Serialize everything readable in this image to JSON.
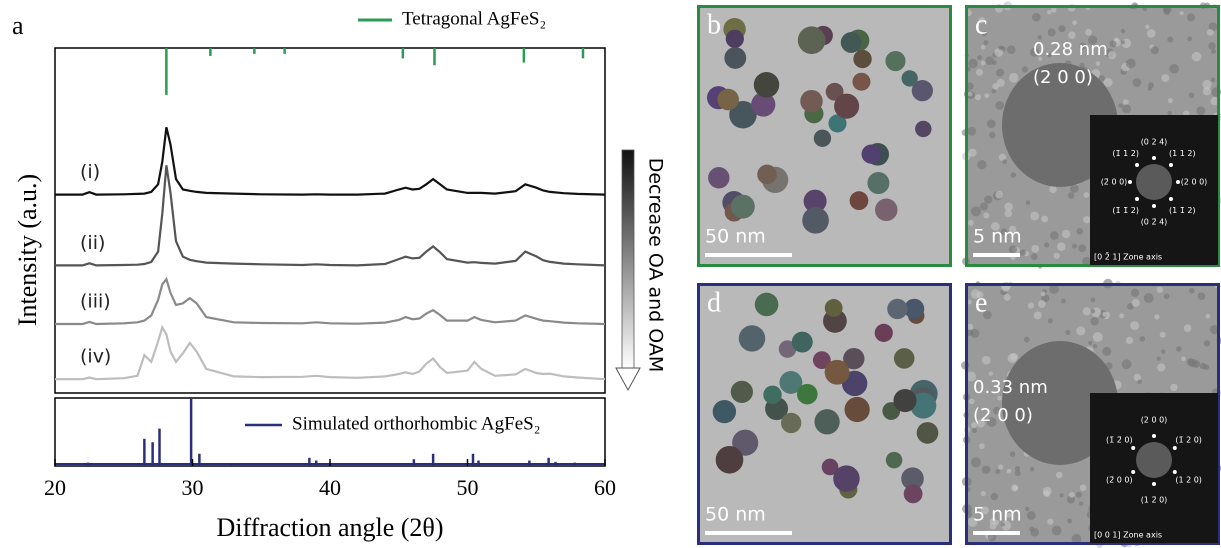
{
  "panel_label": "a",
  "chart_data": [
    {
      "type": "line",
      "ylabel": "Intensity (a.u.)",
      "gradient_label": "Decrease OA and OAM",
      "xlim": [
        20,
        60
      ],
      "ylim": [
        0,
        100
      ],
      "x": [
        20,
        22,
        22.5,
        23,
        25,
        26,
        26.5,
        27,
        27.5,
        27.8,
        28.1,
        28.4,
        28.8,
        29.3,
        29.8,
        30.3,
        31,
        33,
        35,
        38,
        39,
        40,
        42,
        44,
        45,
        45.5,
        46,
        46.5,
        47,
        47.5,
        48,
        48.5,
        50,
        50.5,
        51,
        52,
        53.5,
        54.2,
        55,
        55.5,
        56,
        57,
        58,
        60
      ],
      "series": [
        {
          "name": "(i)",
          "color": "#111111",
          "values": [
            57.5,
            57.5,
            58.2,
            57.5,
            57.6,
            57.7,
            57.8,
            58.3,
            60.5,
            67,
            77,
            72,
            62,
            59,
            58.6,
            58.3,
            58,
            57.8,
            57.6,
            57.5,
            57.6,
            57.5,
            57.5,
            57.8,
            59,
            59.5,
            59,
            59.2,
            60.5,
            62,
            60.5,
            59,
            58,
            58,
            58,
            57.8,
            58.5,
            60.5,
            59.5,
            58.7,
            58.3,
            57.9,
            57.7,
            57.5
          ]
        },
        {
          "name": "(ii)",
          "color": "#555555",
          "values": [
            37,
            37,
            37.6,
            37,
            37.1,
            37.2,
            37.4,
            38,
            41,
            52,
            66,
            58,
            44,
            39.5,
            38.6,
            38.2,
            37.8,
            37.5,
            37.3,
            37.1,
            37.3,
            37.1,
            37,
            37.4,
            38.8,
            39.5,
            39,
            39.2,
            41,
            42.5,
            40.8,
            38.8,
            37.8,
            37.9,
            37.7,
            37.5,
            38.3,
            41,
            39.6,
            38.5,
            38,
            37.5,
            37.3,
            37
          ]
        },
        {
          "name": "(iii)",
          "color": "#8a8a8a",
          "values": [
            20,
            20,
            20.6,
            20,
            20.2,
            20.5,
            21,
            22.5,
            27,
            31.5,
            33,
            29,
            25.5,
            26,
            27.5,
            26,
            22,
            20.5,
            20.3,
            20.2,
            20.5,
            20.2,
            20.1,
            20.4,
            21.2,
            22,
            21.4,
            21.6,
            23,
            24,
            22.6,
            21,
            21,
            22,
            21.2,
            20.5,
            21,
            22.5,
            21.5,
            21,
            20.8,
            20.4,
            20.2,
            20
          ]
        },
        {
          "name": "(iv)",
          "color": "#bdbdbd",
          "values": [
            4,
            4,
            4.5,
            4,
            4.3,
            5,
            11,
            9,
            15,
            19,
            17,
            12,
            9,
            11.5,
            14.5,
            12,
            7,
            4.8,
            4.6,
            4.7,
            5,
            4.6,
            4.4,
            4.8,
            5.5,
            6,
            5.5,
            6.2,
            8.5,
            10,
            7.5,
            5.8,
            6.5,
            9,
            7,
            5,
            5.4,
            7,
            5.8,
            5.5,
            5.6,
            4.8,
            4.5,
            4
          ]
        },
        {
          "name": "Tetragonal AgFeS₂",
          "color": "#2a9a55",
          "kind": "stick",
          "legend": "top-right",
          "x": [
            28.1,
            31.3,
            34.5,
            36.7,
            45.3,
            47.6,
            54.1,
            58.4
          ],
          "values": [
            86.4,
            97.7,
            98.3,
            98.3,
            97,
            95,
            95.8,
            97
          ]
        }
      ]
    },
    {
      "type": "stick",
      "xlabel": "Diffraction angle (2θ)",
      "xlim": [
        20,
        60
      ],
      "ylim": [
        0,
        100
      ],
      "xticks": [
        20,
        30,
        40,
        50,
        60
      ],
      "series": [
        {
          "name": "Simulated orthorhombic AgFeS₂",
          "color": "#2b2f7a",
          "legend": "top-right",
          "x": [
            22.4,
            26.5,
            27.1,
            27.6,
            29.9,
            30.5,
            32.8,
            38.5,
            39.0,
            46.1,
            47.5,
            50.4,
            50.8,
            54.5,
            55.9,
            56.4,
            57.8
          ],
          "values": [
            5,
            40,
            35,
            55,
            100,
            18,
            3,
            12,
            8,
            10,
            18,
            18,
            8,
            8,
            12,
            6,
            5
          ]
        }
      ]
    }
  ],
  "tem_panels": [
    {
      "label": "b",
      "border": "#2a8a40",
      "scale_bar": "50 nm"
    },
    {
      "label": "c",
      "border": "#2a8a40",
      "scale_bar": "5 nm",
      "annotations": [
        "0.28 nm",
        "(2 0 0)"
      ],
      "inset": {
        "spots": [
          "(0 2 4)",
          "(1 1 2)",
          "(2 0 0)",
          "(1 1̄ 2)",
          "(0 2̄ 4)",
          "(1̄ 1̄ 2)",
          "(2̄ 0 0)",
          "(1̄ 1 2)"
        ],
        "zone_axis": "[0 2̄ 1] Zone axis"
      }
    },
    {
      "label": "d",
      "border": "#2b2f7a",
      "scale_bar": "50 nm"
    },
    {
      "label": "e",
      "border": "#2b2f7a",
      "scale_bar": "5 nm",
      "annotations": [
        "0.33 nm",
        "(2 0 0)"
      ],
      "inset": {
        "spots": [
          "(2 0 0)",
          "(1̄ 2 0)",
          "(1 2 0)",
          "(1 2̄ 0)",
          "(2̄ 0 0)",
          "(1̄ 2̄ 0)"
        ],
        "zone_axis": "[0 0 1] Zone axis"
      }
    }
  ]
}
